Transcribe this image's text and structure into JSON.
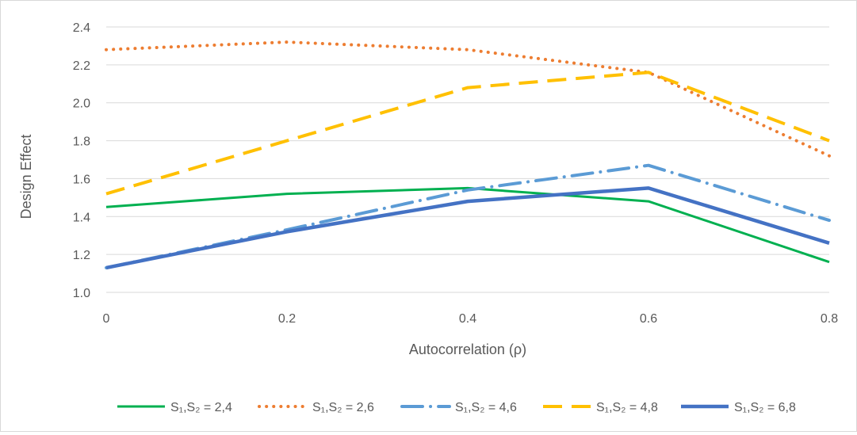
{
  "chart_data": {
    "type": "line",
    "title": "",
    "xlabel": "Autocorrelation (ρ)",
    "ylabel": "Design Effect",
    "x": [
      0,
      0.2,
      0.4,
      0.6,
      0.8
    ],
    "x_tick_labels": [
      "0",
      "0.2",
      "0.4",
      "0.6",
      "0.8"
    ],
    "y_ticks": [
      1.0,
      1.2,
      1.4,
      1.6,
      1.8,
      2.0,
      2.2,
      2.4
    ],
    "y_tick_labels": [
      "1.0",
      "1.2",
      "1.4",
      "1.6",
      "1.8",
      "2.0",
      "2.2",
      "2.4"
    ],
    "xlim": [
      0,
      0.8
    ],
    "ylim": [
      1.0,
      2.4
    ],
    "grid": "horizontal",
    "legend_position": "bottom",
    "series": [
      {
        "name": "S₁,S₂ = 2,4",
        "values": [
          1.45,
          1.52,
          1.55,
          1.48,
          1.16
        ],
        "color": "#00b050",
        "style": "solid"
      },
      {
        "name": "S₁,S₂ = 2,6",
        "values": [
          2.28,
          2.32,
          2.28,
          2.16,
          1.72
        ],
        "color": "#ed7d31",
        "style": "dotted"
      },
      {
        "name": "S₁,S₂ = 4,6",
        "values": [
          1.13,
          1.33,
          1.54,
          1.67,
          1.38
        ],
        "color": "#5b9bd5",
        "style": "dash-dot"
      },
      {
        "name": "S₁,S₂ = 4,8",
        "values": [
          1.52,
          1.8,
          2.08,
          2.16,
          1.8
        ],
        "color": "#ffc000",
        "style": "dashed"
      },
      {
        "name": "S₁,S₂ = 6,8",
        "values": [
          1.13,
          1.32,
          1.48,
          1.55,
          1.26
        ],
        "color": "#4472c4",
        "style": "solid-thick"
      }
    ]
  }
}
